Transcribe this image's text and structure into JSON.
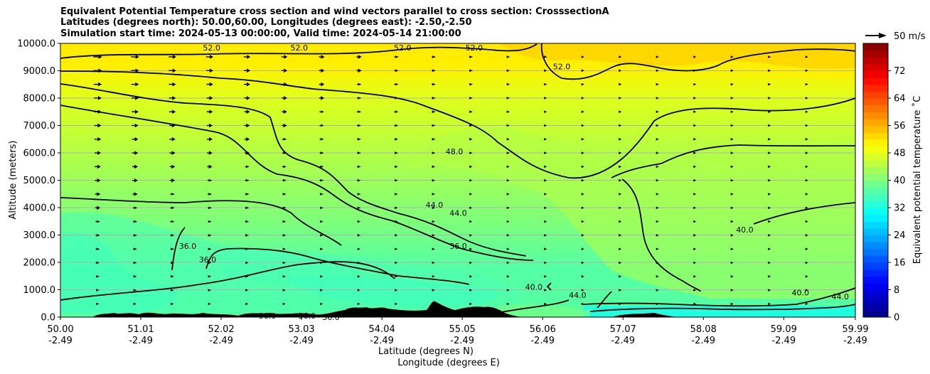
{
  "title_lines": [
    "Equivalent Potential Temperature cross section and wind vectors parallel to cross section: CrosssectionA",
    "Latitudes (degrees north): 50.00,60.00, Longitudes (degrees east): -2.50,-2.50",
    "Simulation start time: 2024-05-13 00:00:00, Valid time: 2024-05-14 21:00:00"
  ],
  "chart_data": {
    "type": "heatmap",
    "subtype": "filled contour cross section with contour lines and wind vectors",
    "title": "Equivalent Potential Temperature cross section and wind vectors parallel to cross section: CrosssectionA",
    "ylabel": "Altitude (meters)",
    "xlabel_1": "Latitude (degrees N)",
    "xlabel_2": "Longitude (degrees E)",
    "ylim": [
      0,
      10000
    ],
    "xlim": [
      50.0,
      59.99
    ],
    "y_ticks": [
      "0.0",
      "1000.0",
      "2000.0",
      "3000.0",
      "4000.0",
      "5000.0",
      "6000.0",
      "7000.0",
      "8000.0",
      "9000.0",
      "10000.0"
    ],
    "x_ticks_lat": [
      "50.00",
      "51.01",
      "52.02",
      "53.03",
      "54.04",
      "55.05",
      "56.06",
      "57.07",
      "58.08",
      "59.09",
      "59.99"
    ],
    "x_ticks_lon": [
      "-2.49",
      "-2.49",
      "-2.49",
      "-2.49",
      "-2.49",
      "-2.49",
      "-2.49",
      "-2.49",
      "-2.49",
      "-2.49",
      "-2.49"
    ],
    "grid": "horizontal",
    "colorbar": {
      "label": "Equivalent potential temperature $^\\circ$C",
      "label_display": "Equivalent potential temperature ˚C",
      "range": [
        0,
        80
      ],
      "ticks": [
        "0",
        "8",
        "16",
        "24",
        "32",
        "40",
        "48",
        "56",
        "64",
        "72"
      ],
      "colormap": "jet"
    },
    "quiver_key": "50 m/s",
    "contour_levels": [
      36,
      40,
      44,
      48,
      52
    ],
    "contour_labels": [
      {
        "text": "52.0",
        "lat": 51.9,
        "z": 9850
      },
      {
        "text": "52.0",
        "lat": 53.0,
        "z": 9850
      },
      {
        "text": "52.0",
        "lat": 54.3,
        "z": 9850
      },
      {
        "text": "52.0",
        "lat": 55.2,
        "z": 9850
      },
      {
        "text": "52.0",
        "lat": 56.3,
        "z": 9150
      },
      {
        "text": "48.0",
        "lat": 54.95,
        "z": 6050
      },
      {
        "text": "44.0",
        "lat": 54.7,
        "z": 4100
      },
      {
        "text": "44.0",
        "lat": 55.0,
        "z": 3800
      },
      {
        "text": "36.0",
        "lat": 55.0,
        "z": 2600
      },
      {
        "text": "36.0",
        "lat": 51.6,
        "z": 2600
      },
      {
        "text": "36.0",
        "lat": 51.85,
        "z": 2100
      },
      {
        "text": "36.0",
        "lat": 52.6,
        "z": 50
      },
      {
        "text": "36.0",
        "lat": 53.1,
        "z": 50
      },
      {
        "text": "36.0",
        "lat": 53.4,
        "z": 0
      },
      {
        "text": "40.0",
        "lat": 58.6,
        "z": 3200
      },
      {
        "text": "40.0",
        "lat": 59.3,
        "z": 900
      },
      {
        "text": "40.0",
        "lat": 55.95,
        "z": 1100
      },
      {
        "text": "44.0",
        "lat": 56.5,
        "z": 800
      },
      {
        "text": "44.0",
        "lat": 59.8,
        "z": 750
      }
    ]
  }
}
